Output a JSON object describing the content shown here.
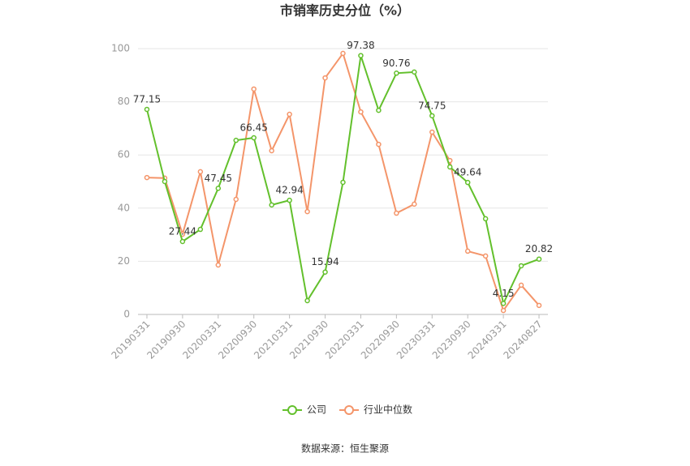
{
  "chart_data": {
    "type": "line",
    "title": "市销率历史分位（%）",
    "source": "数据来源：恒生聚源",
    "categories": [
      "20190331",
      null,
      "20190930",
      null,
      "20200331",
      null,
      "20200930",
      null,
      "20210331",
      null,
      "20210930",
      null,
      "20220331",
      null,
      "20220930",
      null,
      "20230331",
      null,
      "20230930",
      null,
      "20240331",
      null,
      "20240827"
    ],
    "series": [
      {
        "name": "公司",
        "color": "#63c02c",
        "values": [
          77.15,
          50.0,
          27.44,
          32.0,
          47.45,
          65.5,
          66.45,
          41.2,
          42.94,
          5.2,
          15.94,
          49.7,
          97.38,
          76.8,
          90.76,
          91.2,
          74.75,
          55.5,
          49.64,
          36.0,
          4.15,
          18.3,
          20.82
        ],
        "value_labels": [
          "77.15",
          null,
          "27.44",
          null,
          "47.45",
          null,
          "66.45",
          null,
          "42.94",
          null,
          "15.94",
          null,
          "97.38",
          null,
          "90.76",
          null,
          "74.75",
          null,
          "49.64",
          null,
          "4.15",
          null,
          "20.82"
        ]
      },
      {
        "name": "行业中位数",
        "color": "#f4956a",
        "values": [
          51.5,
          51.3,
          30.2,
          53.7,
          18.6,
          43.3,
          84.8,
          61.6,
          75.3,
          38.7,
          89.0,
          98.2,
          76.2,
          64.0,
          38.1,
          41.5,
          68.6,
          57.9,
          23.8,
          22.0,
          1.5,
          11.0,
          3.4
        ]
      }
    ],
    "ylim": [
      0,
      100
    ],
    "yticks": [
      0,
      20,
      40,
      60,
      80,
      100
    ],
    "grid": true,
    "legend": "bottom"
  }
}
